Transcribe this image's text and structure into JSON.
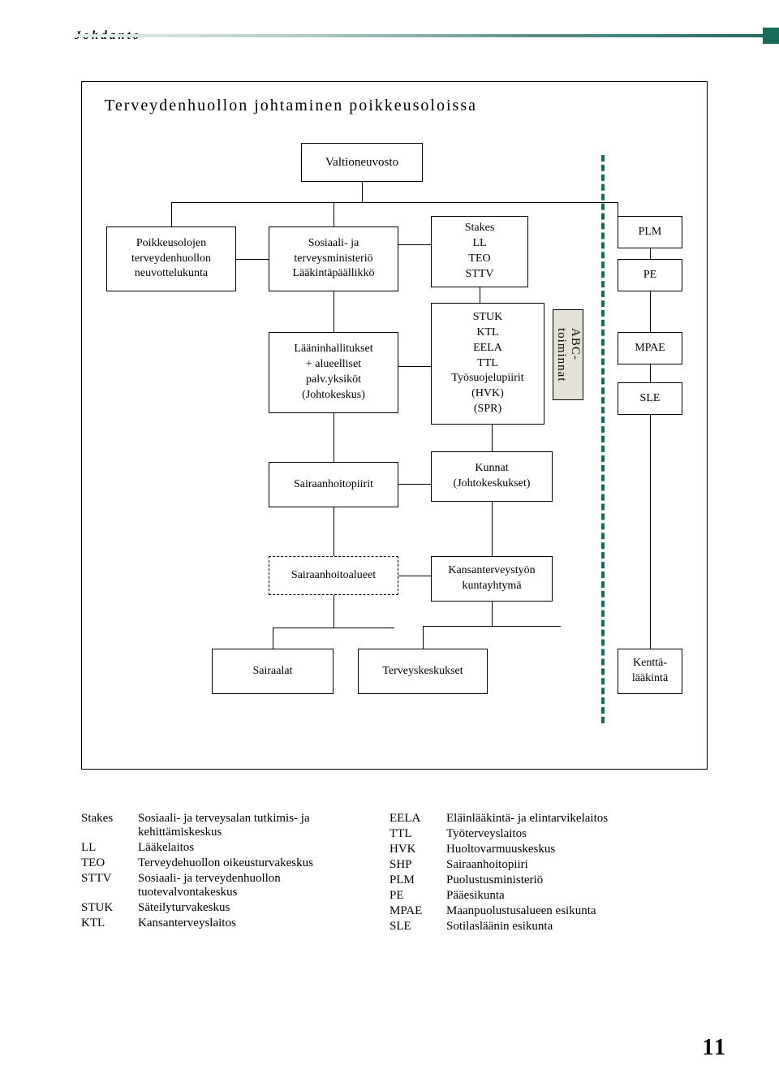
{
  "colors": {
    "teal": "#1a6a5c",
    "abc_bg": "#e4e2d8",
    "bg": "#ffffff"
  },
  "header": {
    "section": "Johdanto"
  },
  "diagram": {
    "title": "Terveydenhuollon johtaminen poikkeusoloissa",
    "nodes": {
      "valtioneuvosto": "Valtioneuvosto",
      "neuvottelukunta": "Poikkeusolojen\nterveydenhuollon\nneuvottelukunta",
      "ministerio": "Sosiaali- ja\nterveysministeriö\nLääkintäpäällikkö",
      "laanin": "Lääninhallitukset\n+ alueelliset\npalv.yksiköt\n(Johtokeskus)",
      "stakes_box": "Stakes\nLL\nTEO\nSTTV",
      "stuk_box": "STUK\nKTL\nEELA\nTTL\nTyösuojelupiirit\n(HVK)\n(SPR)",
      "plm": "PLM",
      "pe": "PE",
      "mpae": "MPAE",
      "sle": "SLE",
      "sairaanhoitopiirit": "Sairaanhoitopiirit",
      "kunnat": "Kunnat\n(Johtokeskukset)",
      "sairaanhoitoalueet": "Sairaanhoitoalueet",
      "kansanterveys": "Kansanterveystyön\nkuntayhtymä",
      "sairaalat": "Sairaalat",
      "terveyskeskukset": "Terveyskeskukset",
      "kentta": "Kenttä-\nlääkintä",
      "abc": "ABC-\ntoiminnat"
    }
  },
  "legend": {
    "left": [
      {
        "abbr": "Stakes",
        "def": "Sosiaali- ja terveysalan tutkimis- ja kehittämiskeskus"
      },
      {
        "abbr": "LL",
        "def": "Lääkelaitos"
      },
      {
        "abbr": "TEO",
        "def": "Terveydehuollon oikeusturvakeskus"
      },
      {
        "abbr": "STTV",
        "def": "Sosiaali- ja terveyden­huollon tuotevalvonta­keskus"
      },
      {
        "abbr": "STUK",
        "def": "Säteilyturvakeskus"
      },
      {
        "abbr": "KTL",
        "def": "Kansanterveyslaitos"
      }
    ],
    "right": [
      {
        "abbr": "EELA",
        "def": "Eläinlääkintä- ja elintarvikelaitos"
      },
      {
        "abbr": "TTL",
        "def": "Työterveyslaitos"
      },
      {
        "abbr": "HVK",
        "def": "Huoltovarmuuskeskus"
      },
      {
        "abbr": "SHP",
        "def": "Sairaanhoitopiiri"
      },
      {
        "abbr": "PLM",
        "def": "Puolustusministeriö"
      },
      {
        "abbr": "PE",
        "def": "Pääesikunta"
      },
      {
        "abbr": "MPAE",
        "def": "Maanpuolustusalueen esikunta"
      },
      {
        "abbr": "SLE",
        "def": "Sotilasläänin esikunta"
      }
    ]
  },
  "page_number": "11"
}
